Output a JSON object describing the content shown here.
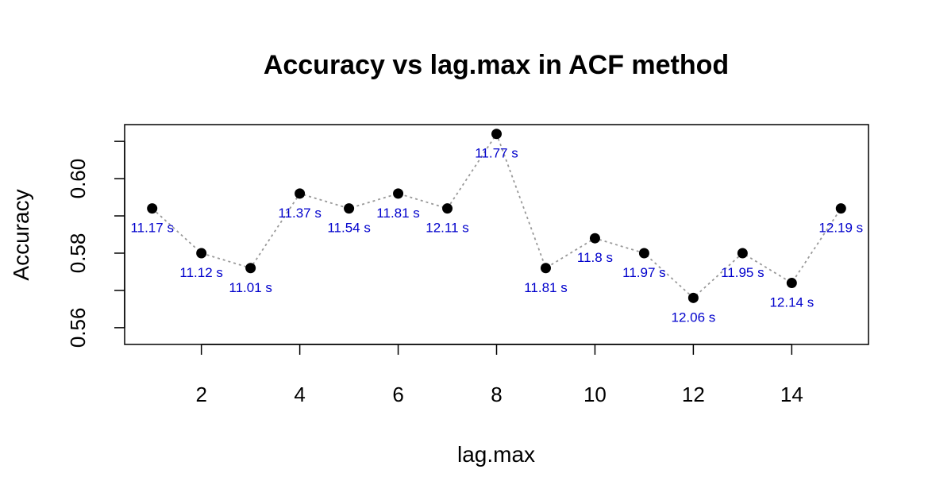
{
  "chart_data": {
    "type": "line",
    "title": "Accuracy vs lag.max in ACF method",
    "xlabel": "lag.max",
    "ylabel": "Accuracy",
    "xlim": [
      0.44,
      15.56
    ],
    "ylim": [
      0.5555,
      0.6145
    ],
    "x_ticks": [
      2,
      4,
      6,
      8,
      10,
      12,
      14
    ],
    "x_tick_labels": [
      "2",
      "4",
      "6",
      "8",
      "10",
      "12",
      "14"
    ],
    "y_ticks": [
      0.56,
      0.57,
      0.58,
      0.59,
      0.6,
      0.61
    ],
    "y_tick_labels": [
      "0.56",
      "",
      "0.58",
      "",
      "0.60",
      ""
    ],
    "grid": false,
    "line_style": "dotted",
    "line_color": "#999999",
    "point_color": "#000000",
    "label_color": "#0000cc",
    "x": [
      1,
      2,
      3,
      4,
      5,
      6,
      7,
      8,
      9,
      10,
      11,
      12,
      13,
      14,
      15
    ],
    "y": [
      0.592,
      0.58,
      0.576,
      0.596,
      0.592,
      0.596,
      0.592,
      0.612,
      0.576,
      0.584,
      0.58,
      0.568,
      0.58,
      0.572,
      0.592
    ],
    "point_labels": [
      "11.17 s",
      "11.12 s",
      "11.01 s",
      "11.37 s",
      "11.54 s",
      "11.81 s",
      "12.11 s",
      "11.77 s",
      "11.81 s",
      "11.8 s",
      "11.97 s",
      "12.06 s",
      "11.95 s",
      "12.14 s",
      "12.19 s"
    ]
  }
}
